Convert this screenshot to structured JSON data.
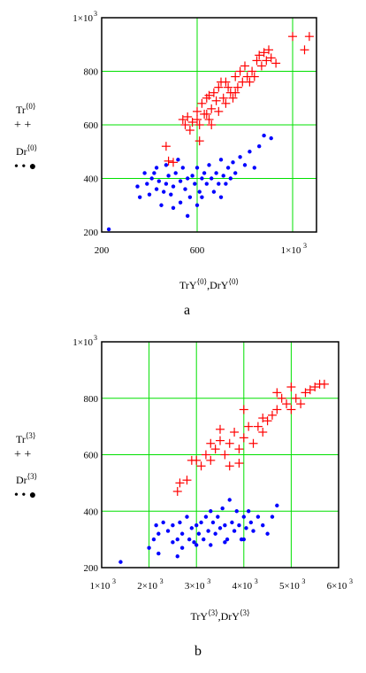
{
  "chart_data": [
    {
      "type": "scatter",
      "panel_label": "a",
      "xlim": [
        200,
        1100
      ],
      "ylim": [
        200,
        1000
      ],
      "x_ticks": [
        {
          "v": 200,
          "label": "200"
        },
        {
          "v": 600,
          "label": "600"
        },
        {
          "v": 1000,
          "label": "1×10"
        }
      ],
      "y_ticks": [
        {
          "v": 200,
          "label": "200"
        },
        {
          "v": 400,
          "label": "400"
        },
        {
          "v": 600,
          "label": "600"
        },
        {
          "v": 800,
          "label": "800"
        },
        {
          "v": 1000,
          "label": "1×10"
        }
      ],
      "grid": true,
      "xlabel": {
        "main": "TrY",
        "sup1": "⟨0⟩",
        "mid": ",DrY",
        "sup2": "⟨0⟩"
      },
      "legend": [
        {
          "name": "Tr",
          "sup": "⟨0⟩",
          "marker": "+ +",
          "color": "#ff0000"
        },
        {
          "name": "Dr",
          "sup": "⟨0⟩",
          "marker": "• • ●",
          "color": "#0000ff"
        }
      ],
      "series": [
        {
          "name": "Tr",
          "marker": "plus",
          "color": "#ff0000",
          "points": [
            [
              470,
              520
            ],
            [
              480,
              465
            ],
            [
              500,
              460
            ],
            [
              540,
              620
            ],
            [
              550,
              600
            ],
            [
              560,
              630
            ],
            [
              570,
              580
            ],
            [
              580,
              610
            ],
            [
              600,
              650
            ],
            [
              610,
              600
            ],
            [
              620,
              680
            ],
            [
              630,
              640
            ],
            [
              640,
              700
            ],
            [
              650,
              620
            ],
            [
              660,
              660
            ],
            [
              670,
              720
            ],
            [
              680,
              690
            ],
            [
              690,
              650
            ],
            [
              700,
              760
            ],
            [
              710,
              700
            ],
            [
              720,
              680
            ],
            [
              730,
              740
            ],
            [
              740,
              720
            ],
            [
              750,
              700
            ],
            [
              760,
              780
            ],
            [
              770,
              740
            ],
            [
              780,
              800
            ],
            [
              790,
              760
            ],
            [
              800,
              820
            ],
            [
              810,
              780
            ],
            [
              820,
              760
            ],
            [
              830,
              800
            ],
            [
              840,
              780
            ],
            [
              850,
              840
            ],
            [
              860,
              860
            ],
            [
              870,
              820
            ],
            [
              880,
              870
            ],
            [
              890,
              840
            ],
            [
              900,
              880
            ],
            [
              910,
              850
            ],
            [
              930,
              830
            ],
            [
              1000,
              930
            ],
            [
              1050,
              880
            ],
            [
              1070,
              930
            ],
            [
              610,
              540
            ],
            [
              650,
              710
            ],
            [
              690,
              740
            ],
            [
              760,
              720
            ],
            [
              720,
              760
            ],
            [
              600,
              620
            ],
            [
              640,
              640
            ],
            [
              660,
              600
            ]
          ]
        },
        {
          "name": "Dr",
          "marker": "dot",
          "color": "#0000ff",
          "points": [
            [
              230,
              210
            ],
            [
              350,
              370
            ],
            [
              360,
              330
            ],
            [
              380,
              420
            ],
            [
              390,
              380
            ],
            [
              400,
              340
            ],
            [
              410,
              400
            ],
            [
              420,
              420
            ],
            [
              430,
              360
            ],
            [
              440,
              390
            ],
            [
              450,
              300
            ],
            [
              460,
              350
            ],
            [
              470,
              380
            ],
            [
              480,
              410
            ],
            [
              490,
              340
            ],
            [
              500,
              370
            ],
            [
              510,
              420
            ],
            [
              520,
              470
            ],
            [
              530,
              390
            ],
            [
              540,
              440
            ],
            [
              550,
              360
            ],
            [
              560,
              400
            ],
            [
              570,
              330
            ],
            [
              580,
              410
            ],
            [
              590,
              380
            ],
            [
              600,
              440
            ],
            [
              610,
              350
            ],
            [
              620,
              400
            ],
            [
              630,
              420
            ],
            [
              640,
              380
            ],
            [
              650,
              450
            ],
            [
              660,
              400
            ],
            [
              670,
              350
            ],
            [
              680,
              420
            ],
            [
              690,
              380
            ],
            [
              700,
              470
            ],
            [
              710,
              410
            ],
            [
              720,
              380
            ],
            [
              730,
              440
            ],
            [
              740,
              400
            ],
            [
              750,
              460
            ],
            [
              760,
              420
            ],
            [
              780,
              480
            ],
            [
              800,
              450
            ],
            [
              820,
              500
            ],
            [
              840,
              440
            ],
            [
              860,
              520
            ],
            [
              880,
              560
            ],
            [
              910,
              550
            ],
            [
              560,
              260
            ],
            [
              530,
              310
            ],
            [
              600,
              300
            ],
            [
              620,
              330
            ],
            [
              700,
              330
            ],
            [
              430,
              440
            ],
            [
              470,
              450
            ],
            [
              500,
              290
            ]
          ]
        }
      ]
    },
    {
      "type": "scatter",
      "panel_label": "b",
      "xlim": [
        1000,
        6000
      ],
      "ylim": [
        200,
        1000
      ],
      "x_ticks": [
        {
          "v": 1000,
          "label": "1×10"
        },
        {
          "v": 2000,
          "label": "2×10"
        },
        {
          "v": 3000,
          "label": "3×10"
        },
        {
          "v": 4000,
          "label": "4×10"
        },
        {
          "v": 5000,
          "label": "5×10"
        },
        {
          "v": 6000,
          "label": "6×10"
        }
      ],
      "y_ticks": [
        {
          "v": 200,
          "label": "200"
        },
        {
          "v": 400,
          "label": "400"
        },
        {
          "v": 600,
          "label": "600"
        },
        {
          "v": 800,
          "label": "800"
        },
        {
          "v": 1000,
          "label": "1×10"
        }
      ],
      "grid": true,
      "xlabel": {
        "main": "TrY",
        "sup1": "⟨3⟩",
        "mid": ",DrY",
        "sup2": "⟨3⟩"
      },
      "legend": [
        {
          "name": "Tr",
          "sup": "⟨3⟩",
          "marker": "+ +",
          "color": "#ff0000"
        },
        {
          "name": "Dr",
          "sup": "⟨3⟩",
          "marker": "• • ●",
          "color": "#0000ff"
        }
      ],
      "series": [
        {
          "name": "Tr",
          "marker": "plus",
          "color": "#ff0000",
          "points": [
            [
              2600,
              470
            ],
            [
              2650,
              500
            ],
            [
              2800,
              510
            ],
            [
              2900,
              580
            ],
            [
              3000,
              580
            ],
            [
              3100,
              560
            ],
            [
              3200,
              600
            ],
            [
              3300,
              580
            ],
            [
              3400,
              620
            ],
            [
              3500,
              650
            ],
            [
              3600,
              600
            ],
            [
              3700,
              640
            ],
            [
              3800,
              680
            ],
            [
              3900,
              620
            ],
            [
              4000,
              660
            ],
            [
              4100,
              700
            ],
            [
              4200,
              640
            ],
            [
              4300,
              700
            ],
            [
              4400,
              680
            ],
            [
              4500,
              720
            ],
            [
              4600,
              740
            ],
            [
              4700,
              760
            ],
            [
              4800,
              800
            ],
            [
              4900,
              780
            ],
            [
              5000,
              840
            ],
            [
              5100,
              800
            ],
            [
              5200,
              780
            ],
            [
              5300,
              820
            ],
            [
              5400,
              830
            ],
            [
              5500,
              840
            ],
            [
              5600,
              850
            ],
            [
              5700,
              850
            ],
            [
              3500,
              690
            ],
            [
              3700,
              560
            ],
            [
              4000,
              760
            ],
            [
              4700,
              820
            ],
            [
              3300,
              640
            ],
            [
              3900,
              570
            ],
            [
              4400,
              730
            ],
            [
              5000,
              760
            ]
          ]
        },
        {
          "name": "Dr",
          "marker": "dot",
          "color": "#0000ff",
          "points": [
            [
              1400,
              220
            ],
            [
              2000,
              270
            ],
            [
              2100,
              300
            ],
            [
              2150,
              350
            ],
            [
              2200,
              320
            ],
            [
              2300,
              360
            ],
            [
              2400,
              330
            ],
            [
              2500,
              290
            ],
            [
              2600,
              240
            ],
            [
              2650,
              360
            ],
            [
              2700,
              320
            ],
            [
              2800,
              380
            ],
            [
              2850,
              300
            ],
            [
              2900,
              340
            ],
            [
              2950,
              290
            ],
            [
              3000,
              350
            ],
            [
              3050,
              320
            ],
            [
              3100,
              360
            ],
            [
              3150,
              300
            ],
            [
              3200,
              380
            ],
            [
              3250,
              330
            ],
            [
              3300,
              400
            ],
            [
              3350,
              360
            ],
            [
              3400,
              320
            ],
            [
              3450,
              380
            ],
            [
              3500,
              340
            ],
            [
              3550,
              410
            ],
            [
              3600,
              350
            ],
            [
              3650,
              300
            ],
            [
              3700,
              440
            ],
            [
              3750,
              360
            ],
            [
              3800,
              330
            ],
            [
              3850,
              400
            ],
            [
              3900,
              350
            ],
            [
              3950,
              300
            ],
            [
              4000,
              380
            ],
            [
              4050,
              340
            ],
            [
              4100,
              400
            ],
            [
              4150,
              360
            ],
            [
              4200,
              330
            ],
            [
              4300,
              380
            ],
            [
              4400,
              350
            ],
            [
              4500,
              320
            ],
            [
              4600,
              380
            ],
            [
              4700,
              420
            ],
            [
              2600,
              300
            ],
            [
              2700,
              270
            ],
            [
              3000,
              280
            ],
            [
              3300,
              280
            ],
            [
              3600,
              290
            ],
            [
              4000,
              300
            ],
            [
              2200,
              250
            ],
            [
              2500,
              350
            ]
          ]
        }
      ]
    }
  ]
}
